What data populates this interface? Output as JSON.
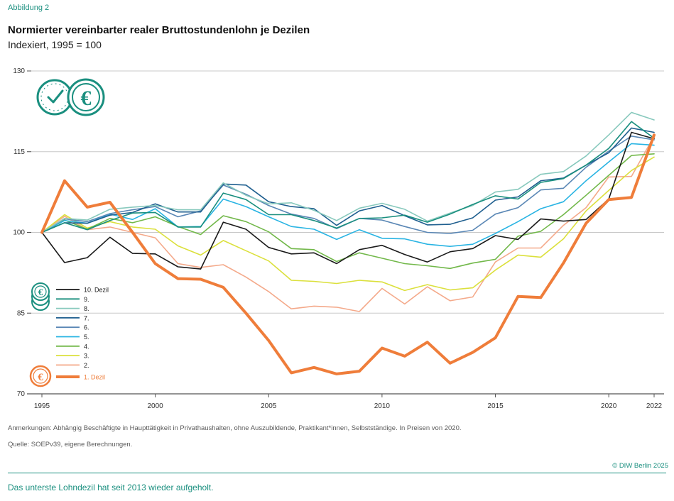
{
  "header": {
    "label": "Abbildung 2",
    "title": "Normierter vereinbarter realer Bruttostundenlohn je Dezilen",
    "subtitle": "Indexiert, 1995 = 100"
  },
  "footer": {
    "note": "Anmerkungen: Abhängig Beschäftigte in Haupttätigkeit in Privathaushalten, ohne Auszubildende, Praktikant*innen, Selbstständige. In Preisen von 2020.",
    "source": "Quelle: SOEPv39, eigene Berechnungen.",
    "copyright": "© DIW Berlin 2025",
    "caption": "Das unterste Lohndezil hat seit 2013 wieder aufgeholt."
  },
  "icons": {
    "top": [
      "clock-icon",
      "euro-coin-icon"
    ],
    "legend_top": "euro-coin-stack-icon",
    "legend_bottom": "euro-coin-icon"
  },
  "chart_data": {
    "type": "line",
    "x": [
      1995,
      1996,
      1997,
      1998,
      1999,
      2000,
      2001,
      2002,
      2003,
      2004,
      2005,
      2006,
      2007,
      2008,
      2009,
      2010,
      2011,
      2012,
      2013,
      2014,
      2015,
      2016,
      2017,
      2018,
      2019,
      2020,
      2021,
      2022
    ],
    "xticks": [
      1995,
      2000,
      2005,
      2010,
      2015,
      2020,
      2022
    ],
    "yticks": [
      70,
      85,
      100,
      115,
      130
    ],
    "ylim": [
      70,
      130
    ],
    "grid": true,
    "legend_position": "bottom-left",
    "series": [
      {
        "name": "10. Dezil",
        "color": "#1a1a1a",
        "values": [
          100,
          94.4,
          95.3,
          99.1,
          96.1,
          96.0,
          93.6,
          93.2,
          101.9,
          100.6,
          97.2,
          96.0,
          96.2,
          94.2,
          96.8,
          97.6,
          95.9,
          94.5,
          96.4,
          97.0,
          99.4,
          98.7,
          102.5,
          102.1,
          102.4,
          106.2,
          118.6,
          117.4
        ]
      },
      {
        "name": "9.",
        "color": "#1a8f7f",
        "values": [
          100,
          101.8,
          100.5,
          102.2,
          103.6,
          103.7,
          101.0,
          101.0,
          107.3,
          106.1,
          103.3,
          103.3,
          102.2,
          100.8,
          102.6,
          102.7,
          103.2,
          101.9,
          103.4,
          105.2,
          106.8,
          106.2,
          109.3,
          110.0,
          112.5,
          115.6,
          120.6,
          117.5
        ]
      },
      {
        "name": "8.",
        "color": "#88c9bd",
        "values": [
          100,
          102.6,
          102.3,
          104.3,
          104.7,
          105.0,
          104.2,
          104.2,
          109.2,
          106.9,
          105.3,
          105.5,
          104.1,
          102.2,
          104.5,
          105.4,
          104.3,
          102.1,
          103.6,
          105.0,
          107.5,
          108.0,
          110.8,
          111.3,
          114.2,
          118.1,
          122.3,
          120.9
        ]
      },
      {
        "name": "7.",
        "color": "#1f5f8f",
        "values": [
          100,
          101.8,
          101.7,
          103.2,
          103.7,
          105.3,
          103.8,
          103.8,
          109.0,
          108.8,
          105.7,
          104.8,
          104.4,
          101.3,
          104.0,
          105.0,
          103.1,
          101.4,
          101.5,
          102.7,
          106.0,
          106.6,
          109.6,
          110.1,
          112.5,
          114.8,
          119.4,
          118.6
        ]
      },
      {
        "name": "6.",
        "color": "#5a87b5",
        "values": [
          100,
          102.5,
          102.0,
          103.5,
          104.2,
          104.8,
          102.9,
          104.0,
          108.8,
          107.1,
          105.0,
          103.4,
          102.6,
          100.7,
          102.6,
          102.3,
          101.1,
          100.0,
          99.8,
          100.4,
          103.4,
          104.6,
          107.9,
          108.2,
          112.1,
          115.1,
          117.9,
          117.2
        ]
      },
      {
        "name": "5.",
        "color": "#29b4e3",
        "values": [
          100,
          102.2,
          101.7,
          103.4,
          102.4,
          104.4,
          101.0,
          101.1,
          106.2,
          104.8,
          102.9,
          101.1,
          100.6,
          98.7,
          100.5,
          98.9,
          98.8,
          97.8,
          97.4,
          97.8,
          99.8,
          102.0,
          104.4,
          105.7,
          109.6,
          113.1,
          116.5,
          116.2
        ]
      },
      {
        "name": "4.",
        "color": "#72b84a",
        "values": [
          100,
          102.3,
          100.6,
          102.6,
          101.8,
          102.9,
          101.1,
          99.6,
          103.1,
          102.0,
          100.1,
          97.0,
          96.8,
          94.6,
          96.2,
          95.2,
          94.2,
          93.8,
          93.3,
          94.3,
          95.0,
          99.3,
          100.2,
          103.3,
          106.9,
          110.6,
          114.3,
          114.6
        ]
      },
      {
        "name": "3.",
        "color": "#dbe03c",
        "values": [
          100,
          103.3,
          100.8,
          102.0,
          101.0,
          100.6,
          97.5,
          95.8,
          98.5,
          96.6,
          94.7,
          91.1,
          90.9,
          90.5,
          91.1,
          90.8,
          89.2,
          90.3,
          89.3,
          89.7,
          93.0,
          95.8,
          95.4,
          98.8,
          104.0,
          107.8,
          111.5,
          114.0
        ]
      },
      {
        "name": "2.",
        "color": "#f4a98a",
        "values": [
          100,
          103.0,
          100.5,
          101.0,
          100.0,
          99.0,
          94.2,
          93.5,
          94.0,
          91.7,
          89.0,
          85.8,
          86.3,
          86.1,
          85.3,
          89.6,
          86.7,
          89.9,
          87.3,
          88.0,
          94.5,
          97.1,
          97.1,
          101.3,
          104.6,
          110.3,
          110.4,
          117.9
        ]
      },
      {
        "name": "1. Dezil",
        "color": "#ef7d3a",
        "values": [
          100,
          109.6,
          104.7,
          105.6,
          100.0,
          94.2,
          91.4,
          91.3,
          89.8,
          85.0,
          79.9,
          73.9,
          74.9,
          73.7,
          74.2,
          78.5,
          77.0,
          79.6,
          75.7,
          77.7,
          80.4,
          88.1,
          87.9,
          94.3,
          101.7,
          106.1,
          106.5,
          118.1
        ]
      }
    ]
  }
}
